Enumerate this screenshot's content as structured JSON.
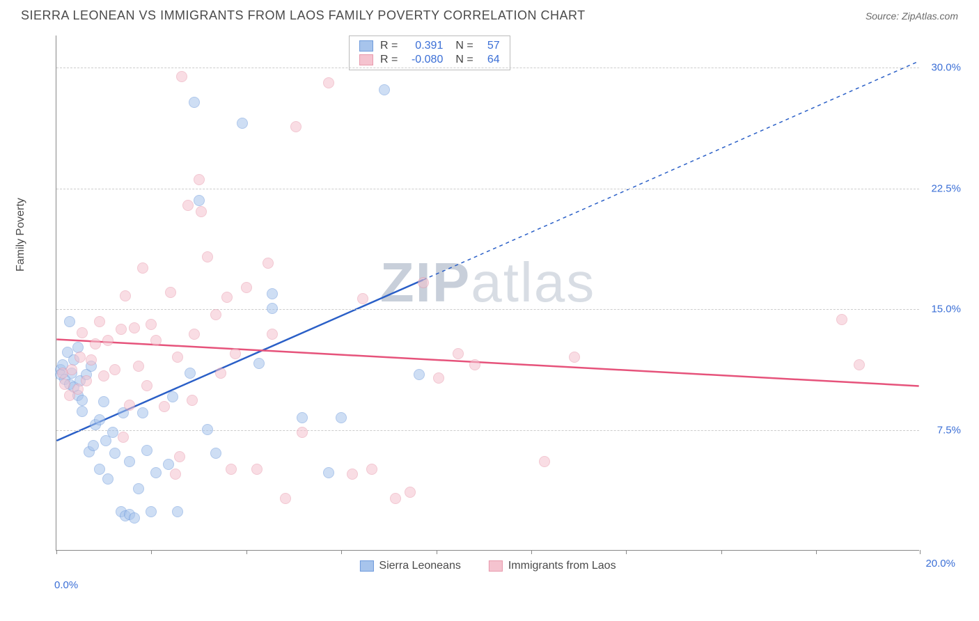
{
  "header": {
    "title": "SIERRA LEONEAN VS IMMIGRANTS FROM LAOS FAMILY POVERTY CORRELATION CHART",
    "source": "Source: ZipAtlas.com"
  },
  "watermark": {
    "part1": "ZIP",
    "part2": "atlas"
  },
  "chart": {
    "type": "scatter",
    "y_axis_label": "Family Poverty",
    "xlim": [
      0,
      20
    ],
    "ylim": [
      0,
      32
    ],
    "x_tick_positions": [
      0,
      2.2,
      4.4,
      6.6,
      8.8,
      11.0,
      13.2,
      15.4,
      17.6,
      20.0
    ],
    "x_tick_labels": {
      "left": "0.0%",
      "right": "20.0%"
    },
    "y_gridlines": [
      7.5,
      15.0,
      22.5,
      30.0
    ],
    "y_tick_labels": [
      "7.5%",
      "15.0%",
      "22.5%",
      "30.0%"
    ],
    "grid_color": "#cccccc",
    "background_color": "#ffffff",
    "point_radius": 8,
    "point_opacity": 0.55,
    "series": [
      {
        "name": "Sierra Leoneans",
        "fill": "#a7c4ec",
        "stroke": "#6f9bdc",
        "R": "0.391",
        "N": "57",
        "trend": {
          "x1": 0,
          "y1": 6.8,
          "x2": 8.5,
          "y2": 16.8,
          "solid_color": "#2a5fc7",
          "width": 2.5,
          "dash_x2": 20,
          "dash_y2": 30.4,
          "dash": "5,5"
        },
        "points": [
          [
            0.1,
            11.2
          ],
          [
            0.1,
            10.9
          ],
          [
            0.15,
            11.5
          ],
          [
            0.2,
            10.6
          ],
          [
            0.25,
            12.3
          ],
          [
            0.3,
            14.2
          ],
          [
            0.3,
            10.3
          ],
          [
            0.35,
            11.0
          ],
          [
            0.4,
            10.1
          ],
          [
            0.4,
            11.8
          ],
          [
            0.5,
            9.6
          ],
          [
            0.5,
            12.6
          ],
          [
            0.55,
            10.5
          ],
          [
            0.6,
            9.3
          ],
          [
            0.6,
            8.6
          ],
          [
            0.7,
            10.9
          ],
          [
            0.75,
            6.1
          ],
          [
            0.8,
            11.4
          ],
          [
            0.85,
            6.5
          ],
          [
            0.9,
            7.8
          ],
          [
            1.0,
            8.1
          ],
          [
            1.0,
            5.0
          ],
          [
            1.1,
            9.2
          ],
          [
            1.15,
            6.8
          ],
          [
            1.2,
            4.4
          ],
          [
            1.3,
            7.3
          ],
          [
            1.35,
            6.0
          ],
          [
            1.5,
            2.4
          ],
          [
            1.55,
            8.5
          ],
          [
            1.6,
            2.1
          ],
          [
            1.7,
            5.5
          ],
          [
            1.7,
            2.2
          ],
          [
            1.8,
            2.0
          ],
          [
            1.9,
            3.8
          ],
          [
            2.0,
            8.5
          ],
          [
            2.1,
            6.2
          ],
          [
            2.2,
            2.4
          ],
          [
            2.3,
            4.8
          ],
          [
            2.6,
            5.3
          ],
          [
            2.7,
            9.5
          ],
          [
            2.8,
            2.4
          ],
          [
            3.1,
            11.0
          ],
          [
            3.2,
            27.8
          ],
          [
            3.3,
            21.7
          ],
          [
            3.5,
            7.5
          ],
          [
            3.7,
            6.0
          ],
          [
            4.3,
            26.5
          ],
          [
            4.7,
            11.6
          ],
          [
            5.0,
            15.0
          ],
          [
            5.0,
            15.9
          ],
          [
            5.7,
            8.2
          ],
          [
            6.3,
            4.8
          ],
          [
            6.6,
            8.2
          ],
          [
            7.6,
            28.6
          ],
          [
            8.4,
            10.9
          ]
        ]
      },
      {
        "name": "Immigrants from Laos",
        "fill": "#f5c3cf",
        "stroke": "#e89aad",
        "R": "-0.080",
        "N": "64",
        "trend": {
          "x1": 0,
          "y1": 13.1,
          "x2": 20,
          "y2": 10.2,
          "solid_color": "#e6537b",
          "width": 2.5
        },
        "points": [
          [
            0.15,
            11.0
          ],
          [
            0.2,
            10.3
          ],
          [
            0.3,
            9.6
          ],
          [
            0.35,
            11.2
          ],
          [
            0.5,
            10.0
          ],
          [
            0.55,
            12.0
          ],
          [
            0.6,
            13.5
          ],
          [
            0.7,
            10.5
          ],
          [
            0.8,
            11.8
          ],
          [
            0.9,
            12.8
          ],
          [
            1.0,
            14.2
          ],
          [
            1.1,
            10.8
          ],
          [
            1.2,
            13.0
          ],
          [
            1.35,
            11.2
          ],
          [
            1.5,
            13.7
          ],
          [
            1.55,
            7.0
          ],
          [
            1.6,
            15.8
          ],
          [
            1.7,
            9.0
          ],
          [
            1.8,
            13.8
          ],
          [
            1.9,
            11.4
          ],
          [
            2.0,
            17.5
          ],
          [
            2.1,
            10.2
          ],
          [
            2.2,
            14.0
          ],
          [
            2.3,
            13.0
          ],
          [
            2.5,
            8.9
          ],
          [
            2.65,
            16.0
          ],
          [
            2.75,
            4.7
          ],
          [
            2.8,
            12.0
          ],
          [
            2.85,
            5.8
          ],
          [
            2.9,
            29.4
          ],
          [
            3.05,
            21.4
          ],
          [
            3.15,
            9.3
          ],
          [
            3.2,
            13.4
          ],
          [
            3.3,
            23.0
          ],
          [
            3.35,
            21.0
          ],
          [
            3.5,
            18.2
          ],
          [
            3.7,
            14.6
          ],
          [
            3.8,
            11.0
          ],
          [
            3.95,
            15.7
          ],
          [
            4.05,
            5.0
          ],
          [
            4.15,
            12.2
          ],
          [
            4.4,
            16.3
          ],
          [
            4.65,
            5.0
          ],
          [
            4.9,
            17.8
          ],
          [
            5.0,
            13.4
          ],
          [
            5.3,
            3.2
          ],
          [
            5.55,
            26.3
          ],
          [
            5.7,
            7.3
          ],
          [
            6.3,
            29.0
          ],
          [
            6.85,
            4.7
          ],
          [
            7.1,
            15.6
          ],
          [
            7.3,
            5.0
          ],
          [
            7.85,
            3.2
          ],
          [
            8.2,
            3.6
          ],
          [
            8.5,
            16.6
          ],
          [
            8.85,
            10.7
          ],
          [
            9.3,
            12.2
          ],
          [
            9.7,
            11.5
          ],
          [
            11.3,
            5.5
          ],
          [
            12.0,
            12.0
          ],
          [
            18.2,
            14.3
          ],
          [
            18.6,
            11.5
          ]
        ]
      }
    ],
    "stats_box_labels": {
      "R": "R =",
      "N": "N ="
    },
    "legend_labels": [
      "Sierra Leoneans",
      "Immigrants from Laos"
    ]
  }
}
